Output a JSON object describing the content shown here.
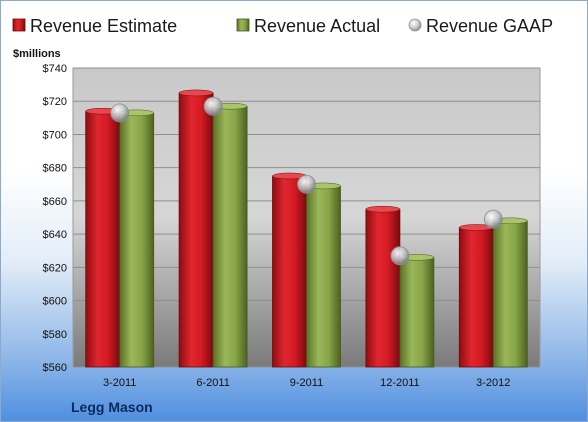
{
  "chart_data": {
    "type": "bar",
    "categories": [
      "3-2011",
      "6-2011",
      "9-2011",
      "12-2011",
      "3-2012"
    ],
    "series": [
      {
        "name": "Revenue Estimate",
        "values": [
          714,
          725,
          675,
          655,
          644
        ],
        "color": "#c8141c",
        "kind": "bar"
      },
      {
        "name": "Revenue Actual",
        "values": [
          713,
          717,
          669,
          626,
          648
        ],
        "color": "#7f9c3a",
        "kind": "bar"
      },
      {
        "name": "Revenue GAAP",
        "values": [
          713,
          717,
          670,
          627,
          649
        ],
        "color": "#b9bcc2",
        "kind": "marker"
      }
    ],
    "ylabel": "$millions",
    "ylim": [
      560,
      740
    ],
    "yticks": [
      560,
      580,
      600,
      620,
      640,
      660,
      680,
      700,
      720,
      740
    ],
    "ytick_labels": [
      "$560",
      "$580",
      "$600",
      "$620",
      "$640",
      "$660",
      "$680",
      "$700",
      "$720",
      "$740"
    ],
    "grid": true,
    "legend_position": "top"
  },
  "footer": {
    "company": "Legg Mason"
  }
}
